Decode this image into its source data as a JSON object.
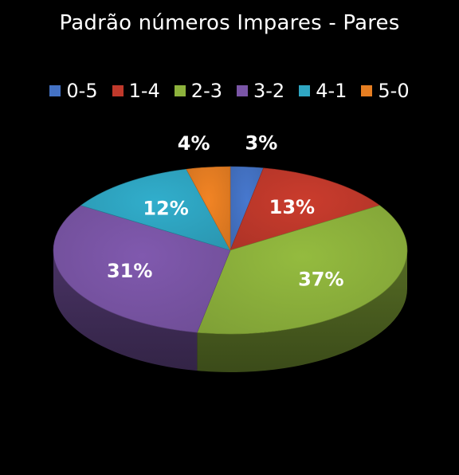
{
  "chart_data": {
    "type": "pie",
    "title": "Padrão números Impares - Pares",
    "legend_position": "top",
    "categories": [
      "0-5",
      "1-4",
      "2-3",
      "3-2",
      "4-1",
      "5-0"
    ],
    "values": [
      3,
      13,
      37,
      31,
      12,
      4
    ],
    "labels": [
      "3%",
      "13%",
      "37%",
      "31%",
      "12%",
      "4%"
    ],
    "colors": [
      "#4472C4",
      "#C0392B",
      "#8DB23C",
      "#7A55A6",
      "#2FA6C2",
      "#E67E22"
    ]
  }
}
